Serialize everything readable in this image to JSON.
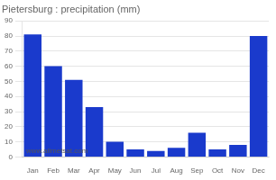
{
  "chart_data": {
    "type": "bar",
    "title": "Pietersburg : precipitation (mm)",
    "categories": [
      "Jan",
      "Feb",
      "Mar",
      "Apr",
      "May",
      "Jun",
      "Jul",
      "Aug",
      "Sep",
      "Oct",
      "Nov",
      "Dec"
    ],
    "values": [
      81,
      60,
      51,
      33,
      10,
      5,
      4,
      6,
      16,
      5,
      8,
      80
    ],
    "color": "#1a3acc",
    "ylim": [
      0,
      90
    ],
    "yticks": [
      0,
      10,
      20,
      30,
      40,
      50,
      60,
      70,
      80,
      90
    ],
    "grid": true,
    "annotations": [
      "www.allmetsat.com"
    ]
  }
}
